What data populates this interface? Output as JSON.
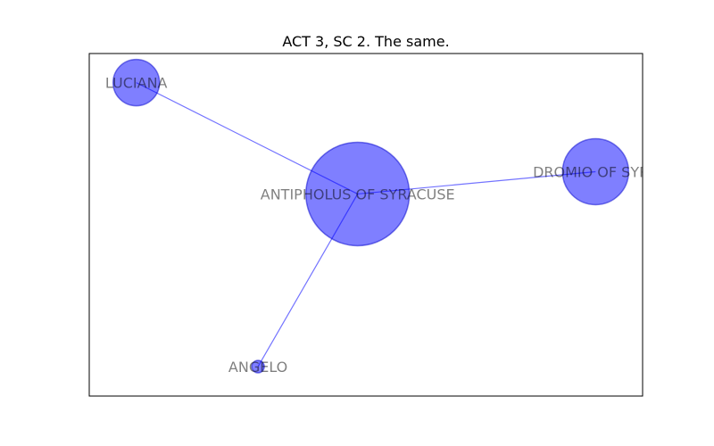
{
  "title": "ACT 3, SC 2. The same.",
  "colors": {
    "node_fill": "#0000ff",
    "node_stroke": "#0000cc",
    "edge": "#0000ff",
    "frame": "#000000"
  },
  "chart_data": {
    "type": "network",
    "title": "ACT 3, SC 2. The same.",
    "xlim": [
      0,
      100
    ],
    "ylim": [
      0,
      100
    ],
    "nodes": [
      {
        "id": "antipholus",
        "label": "ANTIPHOLUS OF SYRACUSE",
        "x": 48.5,
        "y": 59,
        "size": 58
      },
      {
        "id": "luciana",
        "label": "LUCIANA",
        "x": 8.5,
        "y": 91.5,
        "size": 26
      },
      {
        "id": "dromio",
        "label": "DROMIO OF SYRA",
        "x": 91.5,
        "y": 65.5,
        "size": 37
      },
      {
        "id": "angelo",
        "label": "ANGELO",
        "x": 30.5,
        "y": 8.6,
        "size": 7
      }
    ],
    "edges": [
      {
        "source": "antipholus",
        "target": "luciana"
      },
      {
        "source": "antipholus",
        "target": "dromio"
      },
      {
        "source": "antipholus",
        "target": "angelo"
      }
    ]
  }
}
